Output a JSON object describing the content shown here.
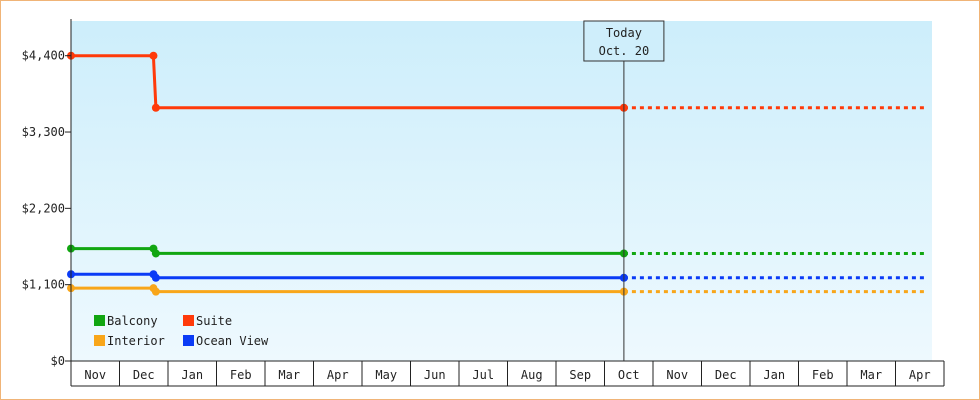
{
  "chart_data": {
    "type": "line",
    "title": "",
    "xlabel": "",
    "ylabel": "",
    "ylim": [
      0,
      4900
    ],
    "y_ticks": [
      "$0",
      "$1,100",
      "$2,200",
      "$3,300",
      "$4,400"
    ],
    "y_tick_values": [
      0,
      1100,
      2200,
      3300,
      4400
    ],
    "months": [
      "Nov",
      "Dec",
      "Jan",
      "Feb",
      "Mar",
      "Apr",
      "May",
      "Jun",
      "Jul",
      "Aug",
      "Sep",
      "Oct",
      "Nov",
      "Dec",
      "Jan",
      "Feb",
      "Mar",
      "Apr"
    ],
    "today_marker": {
      "line1": "Today",
      "line2": "Oct. 20",
      "x": 11.4
    },
    "legend_placement": "bottom-left",
    "background_gradient": [
      "#cdeefb",
      "#eef9fe"
    ],
    "series": [
      {
        "name": "Balcony",
        "color": "#11a611",
        "points": [
          [
            0,
            1620
          ],
          [
            1.7,
            1620
          ],
          [
            1.75,
            1550
          ],
          [
            11.4,
            1550
          ]
        ],
        "projection_to": 17.6
      },
      {
        "name": "Suite",
        "color": "#ff3a0a",
        "points": [
          [
            0,
            4400
          ],
          [
            1.7,
            4400
          ],
          [
            1.75,
            3650
          ],
          [
            11.4,
            3650
          ]
        ],
        "projection_to": 17.6
      },
      {
        "name": "Interior",
        "color": "#f8a61a",
        "points": [
          [
            0,
            1050
          ],
          [
            1.7,
            1050
          ],
          [
            1.75,
            1000
          ],
          [
            11.4,
            1000
          ]
        ],
        "projection_to": 17.6
      },
      {
        "name": "Ocean View",
        "color": "#0a3bf6",
        "points": [
          [
            0,
            1250
          ],
          [
            1.7,
            1250
          ],
          [
            1.75,
            1200
          ],
          [
            11.4,
            1200
          ]
        ],
        "projection_to": 17.6
      }
    ]
  }
}
